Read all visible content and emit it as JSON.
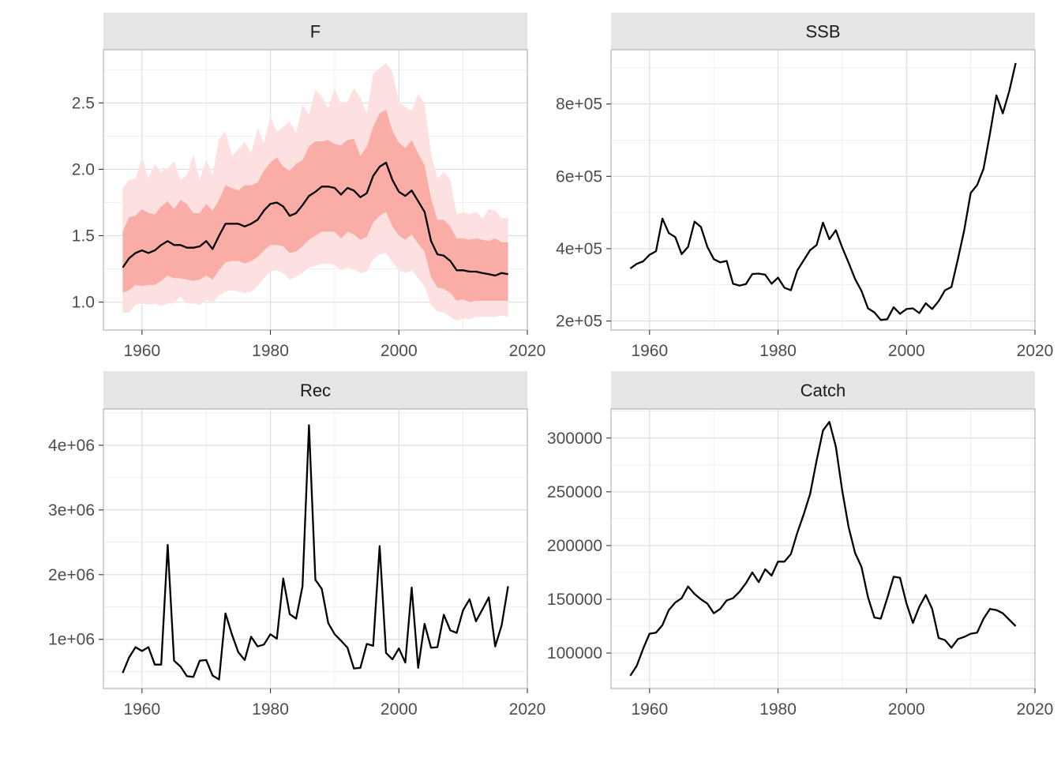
{
  "chart_data": [
    {
      "type": "area",
      "panel": "F",
      "title": "F",
      "xlim": [
        1954,
        2020
      ],
      "ylim": [
        0.79,
        2.9
      ],
      "x_ticks": [
        1960,
        1980,
        2000,
        2020
      ],
      "x_tick_labels": [
        "1960",
        "1980",
        "2000",
        "2020"
      ],
      "y_ticks": [
        1.0,
        1.5,
        2.0,
        2.5
      ],
      "y_tick_labels": [
        "1.0",
        "1.5",
        "2.0",
        "2.5"
      ],
      "grid": true,
      "x": [
        1957,
        1958,
        1959,
        1960,
        1961,
        1962,
        1963,
        1964,
        1965,
        1966,
        1967,
        1968,
        1969,
        1970,
        1971,
        1972,
        1973,
        1974,
        1975,
        1976,
        1977,
        1978,
        1979,
        1980,
        1981,
        1982,
        1983,
        1984,
        1985,
        1986,
        1987,
        1988,
        1989,
        1990,
        1991,
        1992,
        1993,
        1994,
        1995,
        1996,
        1997,
        1998,
        1999,
        2000,
        2001,
        2002,
        2003,
        2004,
        2005,
        2006,
        2007,
        2008,
        2009,
        2010,
        2011,
        2012,
        2013,
        2014,
        2015,
        2016,
        2017
      ],
      "y": [
        1.26,
        1.33,
        1.37,
        1.39,
        1.37,
        1.39,
        1.43,
        1.46,
        1.43,
        1.43,
        1.41,
        1.41,
        1.42,
        1.46,
        1.4,
        1.5,
        1.59,
        1.59,
        1.59,
        1.57,
        1.59,
        1.62,
        1.69,
        1.74,
        1.75,
        1.72,
        1.65,
        1.67,
        1.73,
        1.8,
        1.83,
        1.87,
        1.87,
        1.86,
        1.81,
        1.86,
        1.84,
        1.79,
        1.82,
        1.95,
        2.02,
        2.05,
        1.92,
        1.83,
        1.8,
        1.84,
        1.76,
        1.68,
        1.46,
        1.36,
        1.35,
        1.31,
        1.24,
        1.24,
        1.23,
        1.23,
        1.22,
        1.21,
        1.2,
        1.22,
        1.21
      ],
      "bands": [
        {
          "name": "outer",
          "color": "#fde0e0",
          "lower": [
            0.92,
            0.92,
            0.98,
            0.99,
            0.98,
            0.99,
            0.97,
            0.99,
            0.99,
            1.04,
            0.99,
            0.99,
            0.98,
            1.02,
            0.99,
            1.05,
            1.08,
            1.09,
            1.08,
            1.07,
            1.08,
            1.12,
            1.18,
            1.23,
            1.24,
            1.22,
            1.17,
            1.19,
            1.22,
            1.26,
            1.27,
            1.29,
            1.29,
            1.28,
            1.24,
            1.26,
            1.25,
            1.22,
            1.23,
            1.32,
            1.36,
            1.37,
            1.3,
            1.24,
            1.22,
            1.24,
            1.18,
            1.12,
            0.98,
            0.93,
            0.92,
            0.89,
            0.86,
            0.88,
            0.87,
            0.89,
            0.89,
            0.89,
            0.89,
            0.9,
            0.89
          ],
          "upper": [
            1.86,
            1.92,
            1.93,
            2.09,
            1.93,
            2.04,
            1.98,
            2.01,
            2.06,
            1.92,
            1.96,
            2.11,
            1.92,
            2.07,
            1.96,
            2.23,
            2.29,
            2.1,
            2.15,
            2.21,
            2.12,
            2.31,
            2.2,
            2.4,
            2.28,
            2.32,
            2.36,
            2.27,
            2.49,
            2.41,
            2.6,
            2.55,
            2.46,
            2.61,
            2.49,
            2.51,
            2.61,
            2.54,
            2.42,
            2.72,
            2.76,
            2.8,
            2.73,
            2.51,
            2.47,
            2.44,
            2.57,
            2.49,
            2.12,
            1.93,
            1.98,
            1.92,
            1.66,
            1.68,
            1.66,
            1.68,
            1.63,
            1.7,
            1.69,
            1.63,
            1.64
          ]
        },
        {
          "name": "inner",
          "color": "#f9ada6",
          "lower": [
            1.07,
            1.09,
            1.13,
            1.12,
            1.13,
            1.13,
            1.16,
            1.2,
            1.18,
            1.18,
            1.17,
            1.16,
            1.17,
            1.2,
            1.17,
            1.24,
            1.3,
            1.31,
            1.31,
            1.29,
            1.31,
            1.34,
            1.39,
            1.43,
            1.43,
            1.42,
            1.37,
            1.38,
            1.42,
            1.47,
            1.5,
            1.53,
            1.53,
            1.53,
            1.48,
            1.53,
            1.51,
            1.47,
            1.49,
            1.6,
            1.65,
            1.68,
            1.57,
            1.5,
            1.47,
            1.51,
            1.44,
            1.38,
            1.19,
            1.11,
            1.1,
            1.07,
            1.01,
            1.02,
            1.0,
            1.01,
            1.01,
            1.01,
            1.01,
            1.01,
            1.01
          ],
          "upper": [
            1.53,
            1.64,
            1.65,
            1.7,
            1.67,
            1.66,
            1.72,
            1.76,
            1.7,
            1.77,
            1.74,
            1.67,
            1.67,
            1.74,
            1.69,
            1.77,
            1.88,
            1.86,
            1.84,
            1.88,
            1.88,
            1.9,
            1.99,
            2.05,
            2.09,
            2.02,
            1.99,
            2.04,
            2.07,
            2.17,
            2.21,
            2.21,
            2.22,
            2.19,
            2.18,
            2.22,
            2.23,
            2.1,
            2.17,
            2.32,
            2.42,
            2.45,
            2.29,
            2.2,
            2.16,
            2.22,
            2.12,
            2.03,
            1.78,
            1.62,
            1.62,
            1.57,
            1.48,
            1.48,
            1.47,
            1.48,
            1.47,
            1.46,
            1.48,
            1.45,
            1.45
          ]
        }
      ],
      "line_color": "#000000"
    },
    {
      "type": "line",
      "panel": "SSB",
      "title": "SSB",
      "xlim": [
        1954,
        2020
      ],
      "ylim": [
        175000,
        950000
      ],
      "x_ticks": [
        1960,
        1980,
        2000,
        2020
      ],
      "x_tick_labels": [
        "1960",
        "1980",
        "2000",
        "2020"
      ],
      "y_ticks": [
        200000,
        400000,
        600000,
        800000
      ],
      "y_tick_labels": [
        "2e+05",
        "4e+05",
        "6e+05",
        "8e+05"
      ],
      "grid": true,
      "x": [
        1957,
        1958,
        1959,
        1960,
        1961,
        1962,
        1963,
        1964,
        1965,
        1966,
        1967,
        1968,
        1969,
        1970,
        1971,
        1972,
        1973,
        1974,
        1975,
        1976,
        1977,
        1978,
        1979,
        1980,
        1981,
        1982,
        1983,
        1984,
        1985,
        1986,
        1987,
        1988,
        1989,
        1990,
        1991,
        1992,
        1993,
        1994,
        1995,
        1996,
        1997,
        1998,
        1999,
        2000,
        2001,
        2002,
        2003,
        2004,
        2005,
        2006,
        2007,
        2008,
        2009,
        2010,
        2011,
        2012,
        2013,
        2014,
        2015,
        2016,
        2017
      ],
      "y": [
        345000,
        358000,
        365000,
        383000,
        393000,
        483000,
        443000,
        432000,
        385000,
        405000,
        475000,
        460000,
        405000,
        371000,
        362000,
        366000,
        303000,
        298000,
        302000,
        330000,
        331000,
        328000,
        303000,
        320000,
        292000,
        285000,
        340000,
        368000,
        396000,
        410000,
        472000,
        426000,
        451000,
        403000,
        361000,
        316000,
        283000,
        235000,
        224000,
        203000,
        205000,
        238000,
        220000,
        233000,
        235000,
        222000,
        249000,
        233000,
        255000,
        285000,
        294000,
        371000,
        452000,
        554000,
        576000,
        621000,
        718000,
        824000,
        774000,
        836000,
        913000
      ],
      "line_color": "#000000"
    },
    {
      "type": "line",
      "panel": "Rec",
      "title": "Rec",
      "xlim": [
        1954,
        2020
      ],
      "ylim": [
        240000,
        4560000
      ],
      "x_ticks": [
        1960,
        1980,
        2000,
        2020
      ],
      "x_tick_labels": [
        "1960",
        "1980",
        "2000",
        "2020"
      ],
      "y_ticks": [
        1000000,
        2000000,
        3000000,
        4000000
      ],
      "y_tick_labels": [
        "1e+06",
        "2e+06",
        "3e+06",
        "4e+06"
      ],
      "grid": true,
      "x": [
        1957,
        1958,
        1959,
        1960,
        1961,
        1962,
        1963,
        1964,
        1965,
        1966,
        1967,
        1968,
        1969,
        1970,
        1971,
        1972,
        1973,
        1974,
        1975,
        1976,
        1977,
        1978,
        1979,
        1980,
        1981,
        1982,
        1983,
        1984,
        1985,
        1986,
        1987,
        1988,
        1989,
        1990,
        1991,
        1992,
        1993,
        1994,
        1995,
        1996,
        1997,
        1998,
        1999,
        2000,
        2001,
        2002,
        2003,
        2004,
        2005,
        2006,
        2007,
        2008,
        2009,
        2010,
        2011,
        2012,
        2013,
        2014,
        2015,
        2016,
        2017
      ],
      "y": [
        480000,
        720000,
        880000,
        820000,
        880000,
        610000,
        610000,
        2460000,
        670000,
        580000,
        430000,
        420000,
        670000,
        680000,
        440000,
        380000,
        1400000,
        1080000,
        800000,
        680000,
        1040000,
        890000,
        920000,
        1080000,
        1010000,
        1940000,
        1390000,
        1320000,
        1820000,
        4310000,
        1920000,
        1780000,
        1250000,
        1080000,
        980000,
        870000,
        550000,
        560000,
        930000,
        900000,
        2440000,
        790000,
        690000,
        860000,
        640000,
        1800000,
        560000,
        1240000,
        870000,
        880000,
        1380000,
        1140000,
        1100000,
        1450000,
        1620000,
        1280000,
        1460000,
        1650000,
        890000,
        1220000,
        1820000
      ],
      "line_color": "#000000"
    },
    {
      "type": "line",
      "panel": "Catch",
      "title": "Catch",
      "xlim": [
        1954,
        2020
      ],
      "ylim": [
        67000,
        327000
      ],
      "x_ticks": [
        1960,
        1980,
        2000,
        2020
      ],
      "x_tick_labels": [
        "1960",
        "1980",
        "2000",
        "2020"
      ],
      "y_ticks": [
        100000,
        150000,
        200000,
        250000,
        300000
      ],
      "y_tick_labels": [
        "100000",
        "150000",
        "200000",
        "250000",
        "300000"
      ],
      "grid": true,
      "x": [
        1957,
        1958,
        1959,
        1960,
        1961,
        1962,
        1963,
        1964,
        1965,
        1966,
        1967,
        1968,
        1969,
        1970,
        1971,
        1972,
        1973,
        1974,
        1975,
        1976,
        1977,
        1978,
        1979,
        1980,
        1981,
        1982,
        1983,
        1984,
        1985,
        1986,
        1987,
        1988,
        1989,
        1990,
        1991,
        1992,
        1993,
        1994,
        1995,
        1996,
        1997,
        1998,
        1999,
        2000,
        2001,
        2002,
        2003,
        2004,
        2005,
        2006,
        2007,
        2008,
        2009,
        2010,
        2011,
        2012,
        2013,
        2014,
        2015,
        2016,
        2017
      ],
      "y": [
        79000,
        88000,
        104000,
        118000,
        119000,
        126000,
        140000,
        147000,
        151000,
        162000,
        155000,
        150000,
        146000,
        137000,
        141000,
        149000,
        151000,
        157000,
        165000,
        175000,
        166000,
        178000,
        172000,
        185000,
        185000,
        192000,
        212000,
        229000,
        248000,
        279000,
        307000,
        315000,
        292000,
        251000,
        217000,
        193000,
        180000,
        152000,
        133000,
        132000,
        151000,
        171000,
        170000,
        146000,
        128000,
        143000,
        154000,
        141000,
        114000,
        112000,
        105000,
        113000,
        115000,
        118000,
        119000,
        132000,
        141000,
        140000,
        137000,
        131000,
        125000
      ],
      "line_color": "#000000"
    }
  ]
}
